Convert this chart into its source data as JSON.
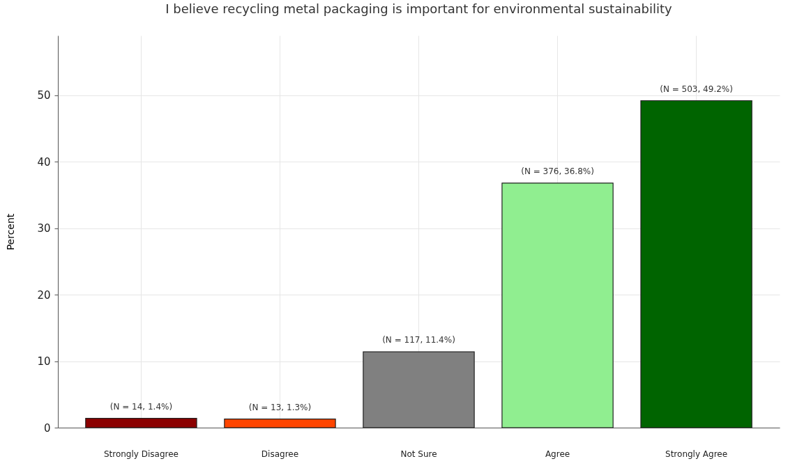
{
  "chart_data": {
    "type": "bar",
    "title": "I believe recycling metal packaging is important for environmental sustainability",
    "ylabel": "Percent",
    "categories": [
      "Strongly Disagree",
      "Disagree",
      "Not Sure",
      "Agree",
      "Strongly Agree"
    ],
    "values": [
      1.4,
      1.3,
      11.4,
      36.8,
      49.2
    ],
    "colors": [
      "#8b0000",
      "#ff4500",
      "#808080",
      "#90ee90",
      "#006400"
    ],
    "value_labels": [
      "(N = 14, 1.4%)",
      "(N = 13, 1.3%)",
      "(N = 117, 11.4%)",
      "(N = 376, 36.8%)",
      "(N = 503, 49.2%)"
    ],
    "ylim": [
      0,
      59
    ],
    "yticks": [
      0,
      10,
      20,
      30,
      40,
      50
    ],
    "grid": true
  }
}
